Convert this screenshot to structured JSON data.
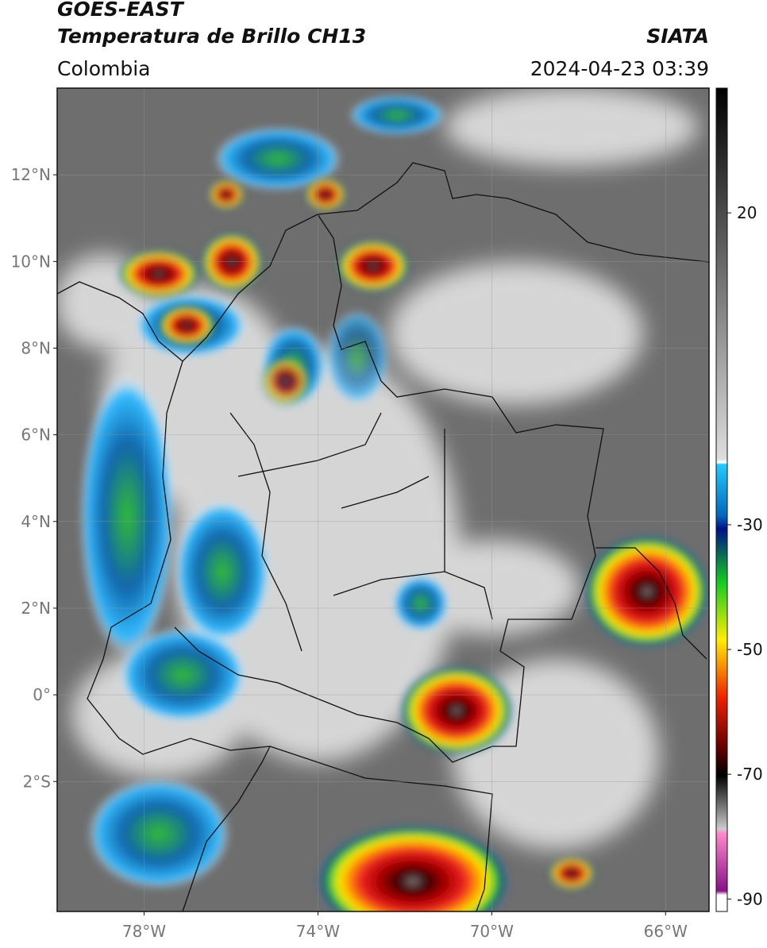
{
  "header": {
    "title": "GOES-EAST",
    "subtitle": "Temperatura de Brillo CH13",
    "region": "Colombia",
    "source": "SIATA",
    "datetime": "2024-04-23 03:39"
  },
  "map": {
    "lon_range": [
      -80,
      -65
    ],
    "lat_range": [
      -5,
      14
    ],
    "lat_ticks": [
      {
        "value": 12,
        "label": "12°N"
      },
      {
        "value": 10,
        "label": "10°N"
      },
      {
        "value": 8,
        "label": "8°N"
      },
      {
        "value": 6,
        "label": "6°N"
      },
      {
        "value": 4,
        "label": "4°N"
      },
      {
        "value": 2,
        "label": "2°N"
      },
      {
        "value": 0,
        "label": "0°"
      },
      {
        "value": -2,
        "label": "2°S"
      }
    ],
    "lon_ticks": [
      {
        "value": -78,
        "label": "78°W"
      },
      {
        "value": -74,
        "label": "74°W"
      },
      {
        "value": -70,
        "label": "70°W"
      },
      {
        "value": -66,
        "label": "66°W"
      }
    ]
  },
  "colorbar": {
    "range": [
      -92,
      40
    ],
    "ticks": [
      20,
      -30,
      -50,
      -70,
      -90
    ]
  }
}
